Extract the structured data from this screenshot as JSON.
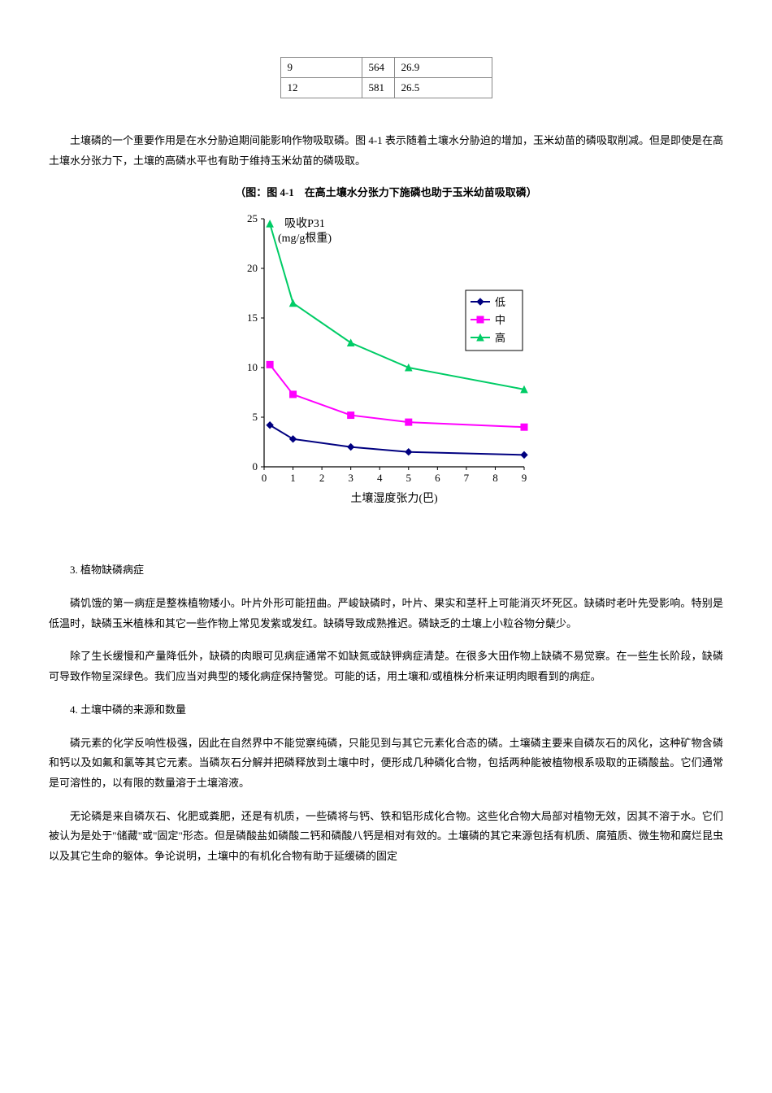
{
  "table": {
    "rows": [
      [
        "9",
        "564",
        "26.9"
      ],
      [
        "12",
        "581",
        "26.5"
      ]
    ]
  },
  "paragraph1": "土壤磷的一个重要作用是在水分胁迫期间能影响作物吸取磷。图 4-1 表示随着土壤水分胁迫的增加，玉米幼苗的磷吸取削减。但是即使是在高土壤水分张力下，土壤的高磷水平也有助于维持玉米幼苗的磷吸取。",
  "chart_caption": "（图：图 4-1　在高土壤水分张力下施磷也助于玉米幼苗吸取磷）",
  "chart": {
    "type": "line",
    "y_label_line1": "吸收P31",
    "y_label_line2": "(mg/g根重)",
    "x_label": "土壤湿度张力(巴)",
    "xlim": [
      0,
      9
    ],
    "ylim": [
      0,
      25
    ],
    "xticks": [
      0,
      1,
      2,
      3,
      4,
      5,
      6,
      7,
      8,
      9
    ],
    "yticks": [
      0,
      5,
      10,
      15,
      20,
      25
    ],
    "background_color": "#ffffff",
    "axis_color": "#000000",
    "text_color": "#000000",
    "label_fontsize": 14,
    "tick_fontsize": 13,
    "legend": {
      "labels": [
        "低",
        "中",
        "高"
      ],
      "colors": [
        "#000080",
        "#ff00ff",
        "#00cc66"
      ],
      "markers": [
        "diamond",
        "square",
        "triangle"
      ],
      "border_color": "#000000",
      "position": "right"
    },
    "series": [
      {
        "name": "低",
        "color": "#000080",
        "marker": "diamond",
        "line_width": 2,
        "data": [
          [
            0.2,
            4.2
          ],
          [
            1,
            2.8
          ],
          [
            3,
            2.0
          ],
          [
            5,
            1.5
          ],
          [
            9,
            1.2
          ]
        ]
      },
      {
        "name": "中",
        "color": "#ff00ff",
        "marker": "square",
        "line_width": 2,
        "data": [
          [
            0.2,
            10.3
          ],
          [
            1,
            7.3
          ],
          [
            3,
            5.2
          ],
          [
            5,
            4.5
          ],
          [
            9,
            4.0
          ]
        ]
      },
      {
        "name": "高",
        "color": "#00cc66",
        "marker": "triangle",
        "line_width": 2,
        "data": [
          [
            0.2,
            24.5
          ],
          [
            1,
            16.5
          ],
          [
            3,
            12.5
          ],
          [
            5,
            10.0
          ],
          [
            9,
            7.8
          ]
        ]
      }
    ]
  },
  "section3_head": "3. 植物缺磷病症",
  "section3_p1": "磷饥饿的第一病症是整株植物矮小。叶片外形可能扭曲。严峻缺磷时，叶片、果实和茎秆上可能消灭坏死区。缺磷时老叶先受影响。特别是低温时，缺磷玉米植株和其它一些作物上常见发紫或发红。缺磷导致成熟推迟。磷缺乏的土壤上小粒谷物分蘖少。",
  "section3_p2": "除了生长缓慢和产量降低外，缺磷的肉眼可见病症通常不如缺氮或缺钾病症清楚。在很多大田作物上缺磷不易觉察。在一些生长阶段，缺磷可导致作物呈深绿色。我们应当对典型的矮化病症保持警觉。可能的话，用土壤和/或植株分析来证明肉眼看到的病症。",
  "section4_head": "4. 土壤中磷的来源和数量",
  "section4_p1": "磷元素的化学反响性极强，因此在自然界中不能觉察纯磷，只能见到与其它元素化合态的磷。土壤磷主要来自磷灰石的风化，这种矿物含磷和钙以及如氟和氯等其它元素。当磷灰石分解并把磷释放到土壤中时，便形成几种磷化合物，包括两种能被植物根系吸取的正磷酸盐。它们通常是可溶性的，以有限的数量溶于土壤溶液。",
  "section4_p2": "无论磷是来自磷灰石、化肥或粪肥，还是有机质，一些磷将与钙、铁和铝形成化合物。这些化合物大局部对植物无效，因其不溶于水。它们被认为是处于\"储藏\"或\"固定\"形态。但是磷酸盐如磷酸二钙和磷酸八钙是相对有效的。土壤磷的其它来源包括有机质、腐殖质、微生物和腐烂昆虫以及其它生命的躯体。争论说明，土壤中的有机化合物有助于延缓磷的固定"
}
